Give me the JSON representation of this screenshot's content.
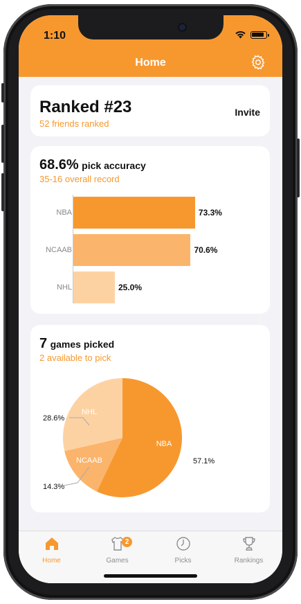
{
  "status_bar": {
    "time": "1:10"
  },
  "header": {
    "title": "Home"
  },
  "ranking": {
    "title": "Ranked #23",
    "subtitle": "52 friends ranked",
    "invite_label": "Invite"
  },
  "accuracy": {
    "value": "68.6%",
    "label": "pick accuracy",
    "subtitle": "35-16 overall record"
  },
  "games": {
    "count": "7",
    "label": "games picked",
    "subtitle": "2 available to pick"
  },
  "chart_data": [
    {
      "type": "bar",
      "orientation": "horizontal",
      "categories": [
        "NBA",
        "NCAAB",
        "NHL"
      ],
      "values": [
        73.3,
        70.6,
        25.0
      ],
      "value_labels": [
        "73.3%",
        "70.6%",
        "25.0%"
      ],
      "colors": [
        "#f7982f",
        "#fbb46b",
        "#fdd2a3"
      ],
      "xlim": [
        0,
        100
      ]
    },
    {
      "type": "pie",
      "categories": [
        "NBA",
        "NCAAB",
        "NHL"
      ],
      "values": [
        57.1,
        14.3,
        28.6
      ],
      "value_labels": [
        "57.1%",
        "14.3%",
        "28.6%"
      ],
      "colors": [
        "#f7982f",
        "#fbb46b",
        "#fdd2a3"
      ]
    }
  ],
  "tabs": [
    {
      "label": "Home",
      "icon": "house-icon",
      "active": true
    },
    {
      "label": "Games",
      "icon": "jersey-icon",
      "badge": "2"
    },
    {
      "label": "Picks",
      "icon": "clock-icon"
    },
    {
      "label": "Rankings",
      "icon": "trophy-icon"
    }
  ]
}
